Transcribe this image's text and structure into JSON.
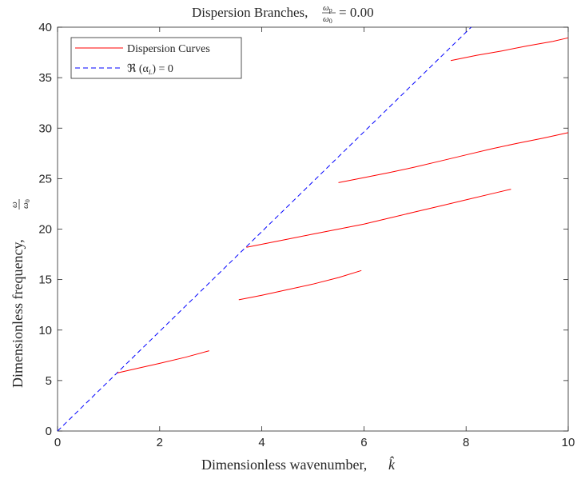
{
  "chart_data": {
    "type": "line",
    "title_prefix": "Dispersion Branches,",
    "title_suffix": "= 0.00",
    "title_fraction": {
      "numerator": "ω",
      "numerator_sub": "p",
      "denominator": "ω",
      "denominator_sub": "0"
    },
    "xlabel_prefix": "Dimensionless wavenumber,",
    "xlabel_symbol": "k̂",
    "ylabel_prefix": "Dimensionless frequency,",
    "ylabel_fraction": {
      "numerator": "ω",
      "denominator": "ω",
      "denominator_sub": "0"
    },
    "xlim": [
      0,
      10
    ],
    "ylim": [
      0,
      40
    ],
    "xticks": [
      "0",
      "2",
      "4",
      "6",
      "8",
      "10"
    ],
    "yticks": [
      "0",
      "5",
      "10",
      "15",
      "20",
      "25",
      "30",
      "35",
      "40"
    ],
    "grid": false,
    "legend_position": "top-left",
    "legend": [
      {
        "label": "Dispersion Curves",
        "color": "#ff0000",
        "style": "solid"
      },
      {
        "label": "ℜ (α",
        "label_sub": "L",
        "label_tail": ") = 0",
        "color": "#0000ff",
        "style": "dashed"
      }
    ],
    "series": [
      {
        "kind": "reference",
        "style": "dashed",
        "color": "#0000ff",
        "points": [
          [
            0,
            0
          ],
          [
            8.1,
            40
          ]
        ]
      },
      {
        "kind": "branch",
        "style": "solid",
        "color": "#ff0000",
        "points": [
          [
            1.17,
            5.75
          ],
          [
            1.6,
            6.25
          ],
          [
            2.0,
            6.7
          ],
          [
            2.5,
            7.3
          ],
          [
            2.97,
            7.95
          ]
        ]
      },
      {
        "kind": "branch",
        "style": "solid",
        "color": "#ff0000",
        "points": [
          [
            3.55,
            13.0
          ],
          [
            4.0,
            13.45
          ],
          [
            4.5,
            14.0
          ],
          [
            5.0,
            14.55
          ],
          [
            5.5,
            15.2
          ],
          [
            5.95,
            15.9
          ]
        ]
      },
      {
        "kind": "branch",
        "style": "solid",
        "color": "#ff0000",
        "points": [
          [
            3.7,
            18.2
          ],
          [
            4.5,
            19.0
          ],
          [
            5.0,
            19.5
          ],
          [
            5.5,
            20.0
          ],
          [
            6.0,
            20.5
          ],
          [
            6.5,
            21.1
          ],
          [
            7.0,
            21.7
          ],
          [
            7.5,
            22.3
          ],
          [
            8.0,
            22.9
          ],
          [
            8.5,
            23.5
          ],
          [
            8.88,
            23.95
          ]
        ]
      },
      {
        "kind": "branch",
        "style": "solid",
        "color": "#ff0000",
        "points": [
          [
            5.5,
            24.6
          ],
          [
            6.0,
            25.1
          ],
          [
            6.5,
            25.6
          ],
          [
            7.0,
            26.15
          ],
          [
            7.5,
            26.75
          ],
          [
            8.0,
            27.35
          ],
          [
            8.5,
            27.95
          ],
          [
            9.0,
            28.5
          ],
          [
            9.5,
            29.0
          ],
          [
            10.0,
            29.55
          ]
        ]
      },
      {
        "kind": "branch",
        "style": "solid",
        "color": "#ff0000",
        "points": [
          [
            7.7,
            36.7
          ],
          [
            8.2,
            37.2
          ],
          [
            8.7,
            37.65
          ],
          [
            9.2,
            38.15
          ],
          [
            9.7,
            38.6
          ],
          [
            10.0,
            38.95
          ]
        ]
      }
    ]
  }
}
